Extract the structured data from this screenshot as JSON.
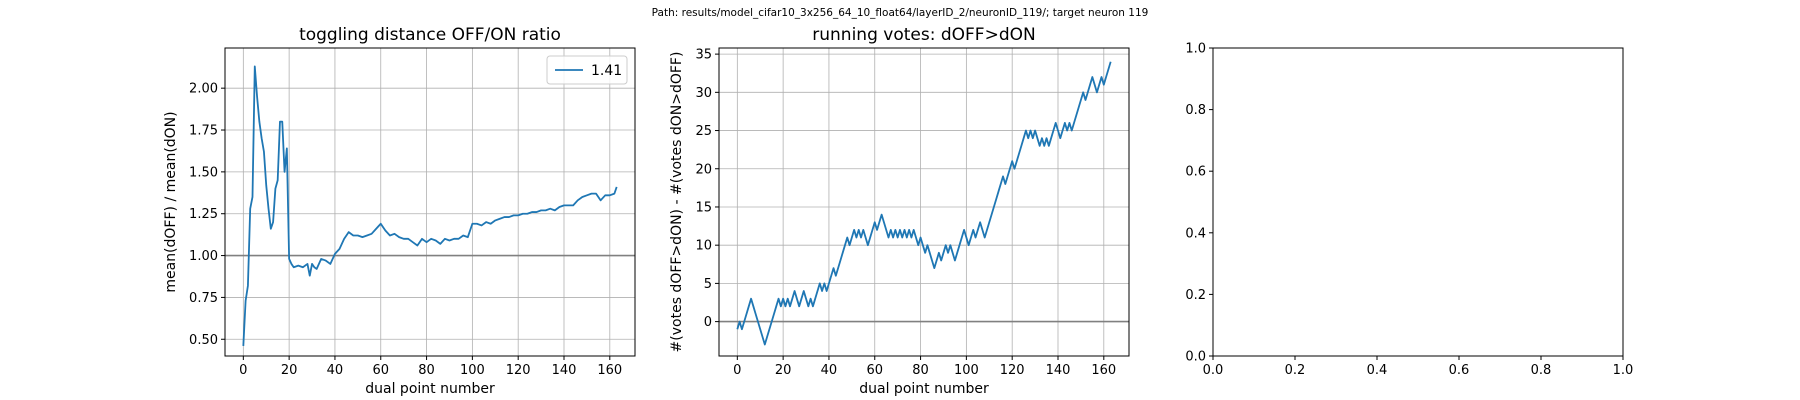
{
  "suptitle": "Path: results/model_cifar10_3x256_64_10_float64/layerID_2/neuronID_119/; target neuron 119",
  "chart_data": [
    {
      "type": "line",
      "title": "toggling distance OFF/ON ratio",
      "xlabel": "dual point number",
      "ylabel": "mean(dOFF) / mean(dON)",
      "xlim": [
        -8,
        171
      ],
      "ylim": [
        0.4,
        2.24
      ],
      "xticks": [
        0,
        20,
        40,
        60,
        80,
        100,
        120,
        140,
        160
      ],
      "yticks": [
        0.5,
        0.75,
        1.0,
        1.25,
        1.5,
        1.75,
        2.0
      ],
      "ytick_decimals": 2,
      "grid": true,
      "legend": {
        "position": "top-right",
        "entries": [
          "1.41"
        ]
      },
      "hline": 1.0,
      "series": [
        {
          "name": "1.41",
          "color": "#1f77b4",
          "x": [
            0,
            1,
            2,
            3,
            4,
            5,
            6,
            7,
            8,
            9,
            10,
            11,
            12,
            13,
            14,
            15,
            16,
            17,
            18,
            19,
            20,
            21,
            22,
            24,
            26,
            28,
            29,
            30,
            31,
            32,
            34,
            36,
            38,
            40,
            42,
            44,
            46,
            48,
            50,
            52,
            54,
            56,
            58,
            60,
            62,
            64,
            66,
            68,
            70,
            72,
            74,
            76,
            78,
            80,
            82,
            84,
            86,
            88,
            90,
            92,
            94,
            96,
            98,
            100,
            102,
            104,
            106,
            108,
            110,
            112,
            114,
            116,
            118,
            120,
            122,
            124,
            126,
            128,
            130,
            132,
            134,
            136,
            138,
            140,
            142,
            144,
            146,
            148,
            150,
            152,
            154,
            156,
            158,
            160,
            162,
            163
          ],
          "y": [
            0.46,
            0.73,
            0.82,
            1.28,
            1.35,
            2.13,
            1.95,
            1.8,
            1.7,
            1.62,
            1.42,
            1.28,
            1.16,
            1.2,
            1.4,
            1.45,
            1.8,
            1.8,
            1.5,
            1.64,
            0.98,
            0.95,
            0.93,
            0.94,
            0.93,
            0.95,
            0.88,
            0.95,
            0.93,
            0.92,
            0.98,
            0.97,
            0.95,
            1.01,
            1.04,
            1.1,
            1.14,
            1.12,
            1.12,
            1.11,
            1.12,
            1.13,
            1.16,
            1.19,
            1.15,
            1.12,
            1.13,
            1.11,
            1.1,
            1.1,
            1.08,
            1.06,
            1.1,
            1.08,
            1.1,
            1.09,
            1.07,
            1.1,
            1.09,
            1.1,
            1.1,
            1.12,
            1.11,
            1.19,
            1.19,
            1.18,
            1.2,
            1.19,
            1.21,
            1.22,
            1.23,
            1.23,
            1.24,
            1.24,
            1.25,
            1.25,
            1.26,
            1.26,
            1.27,
            1.27,
            1.28,
            1.27,
            1.29,
            1.3,
            1.3,
            1.3,
            1.33,
            1.35,
            1.36,
            1.37,
            1.37,
            1.33,
            1.36,
            1.36,
            1.37,
            1.41
          ]
        }
      ]
    },
    {
      "type": "line",
      "title": "running votes: dOFF>dON",
      "xlabel": "dual point number",
      "ylabel": "#(votes dOFF>dON) - #(votes dON>dOFF)",
      "xlim": [
        -8,
        171
      ],
      "ylim": [
        -4.5,
        35.8
      ],
      "xticks": [
        0,
        20,
        40,
        60,
        80,
        100,
        120,
        140,
        160
      ],
      "yticks": [
        0,
        5,
        10,
        15,
        20,
        25,
        30,
        35
      ],
      "ytick_decimals": 0,
      "grid": true,
      "hline": 0,
      "series": [
        {
          "name": "",
          "color": "#1f77b4",
          "x": [
            0,
            1,
            2,
            3,
            4,
            5,
            6,
            7,
            8,
            9,
            10,
            11,
            12,
            13,
            14,
            15,
            16,
            17,
            18,
            19,
            20,
            21,
            22,
            23,
            24,
            25,
            26,
            27,
            28,
            29,
            30,
            31,
            32,
            33,
            34,
            35,
            36,
            37,
            38,
            39,
            40,
            41,
            42,
            43,
            44,
            45,
            46,
            47,
            48,
            49,
            50,
            51,
            52,
            53,
            54,
            55,
            56,
            57,
            58,
            59,
            60,
            61,
            62,
            63,
            64,
            65,
            66,
            67,
            68,
            69,
            70,
            71,
            72,
            73,
            74,
            75,
            76,
            77,
            78,
            79,
            80,
            81,
            82,
            83,
            84,
            85,
            86,
            87,
            88,
            89,
            90,
            91,
            92,
            93,
            94,
            95,
            96,
            97,
            98,
            99,
            100,
            101,
            102,
            103,
            104,
            105,
            106,
            107,
            108,
            109,
            110,
            111,
            112,
            113,
            114,
            115,
            116,
            117,
            118,
            119,
            120,
            121,
            122,
            123,
            124,
            125,
            126,
            127,
            128,
            129,
            130,
            131,
            132,
            133,
            134,
            135,
            136,
            137,
            138,
            139,
            140,
            141,
            142,
            143,
            144,
            145,
            146,
            147,
            148,
            149,
            150,
            151,
            152,
            153,
            154,
            155,
            156,
            157,
            158,
            159,
            160,
            161,
            162,
            163
          ],
          "y": [
            -1,
            0,
            -1,
            0,
            1,
            2,
            3,
            2,
            1,
            0,
            -1,
            -2,
            -3,
            -2,
            -1,
            0,
            1,
            2,
            3,
            2,
            3,
            2,
            3,
            2,
            3,
            4,
            3,
            2,
            3,
            4,
            3,
            2,
            3,
            2,
            3,
            4,
            5,
            4,
            5,
            4,
            5,
            6,
            7,
            6,
            7,
            8,
            9,
            10,
            11,
            10,
            11,
            12,
            11,
            12,
            11,
            12,
            11,
            10,
            11,
            12,
            13,
            12,
            13,
            14,
            13,
            12,
            11,
            12,
            11,
            12,
            11,
            12,
            11,
            12,
            11,
            12,
            11,
            12,
            11,
            10,
            11,
            10,
            9,
            10,
            9,
            8,
            7,
            8,
            9,
            8,
            9,
            10,
            9,
            10,
            9,
            8,
            9,
            10,
            11,
            12,
            11,
            10,
            11,
            12,
            11,
            12,
            13,
            12,
            11,
            12,
            13,
            14,
            15,
            16,
            17,
            18,
            19,
            18,
            19,
            20,
            21,
            20,
            21,
            22,
            23,
            24,
            25,
            24,
            25,
            24,
            25,
            24,
            23,
            24,
            23,
            24,
            23,
            24,
            25,
            26,
            25,
            24,
            25,
            26,
            25,
            26,
            25,
            26,
            27,
            28,
            29,
            30,
            29,
            30,
            31,
            32,
            31,
            30,
            31,
            32,
            31,
            32,
            33,
            34
          ]
        }
      ]
    },
    {
      "type": "line",
      "title": "",
      "xlabel": "",
      "ylabel": "",
      "xlim": [
        0,
        1
      ],
      "ylim": [
        0,
        1
      ],
      "xticks": [
        0.0,
        0.2,
        0.4,
        0.6,
        0.8,
        1.0
      ],
      "yticks": [
        0.0,
        0.2,
        0.4,
        0.6,
        0.8,
        1.0
      ],
      "ytick_decimals": 1,
      "xtick_decimals": 1,
      "grid": false,
      "series": []
    }
  ]
}
